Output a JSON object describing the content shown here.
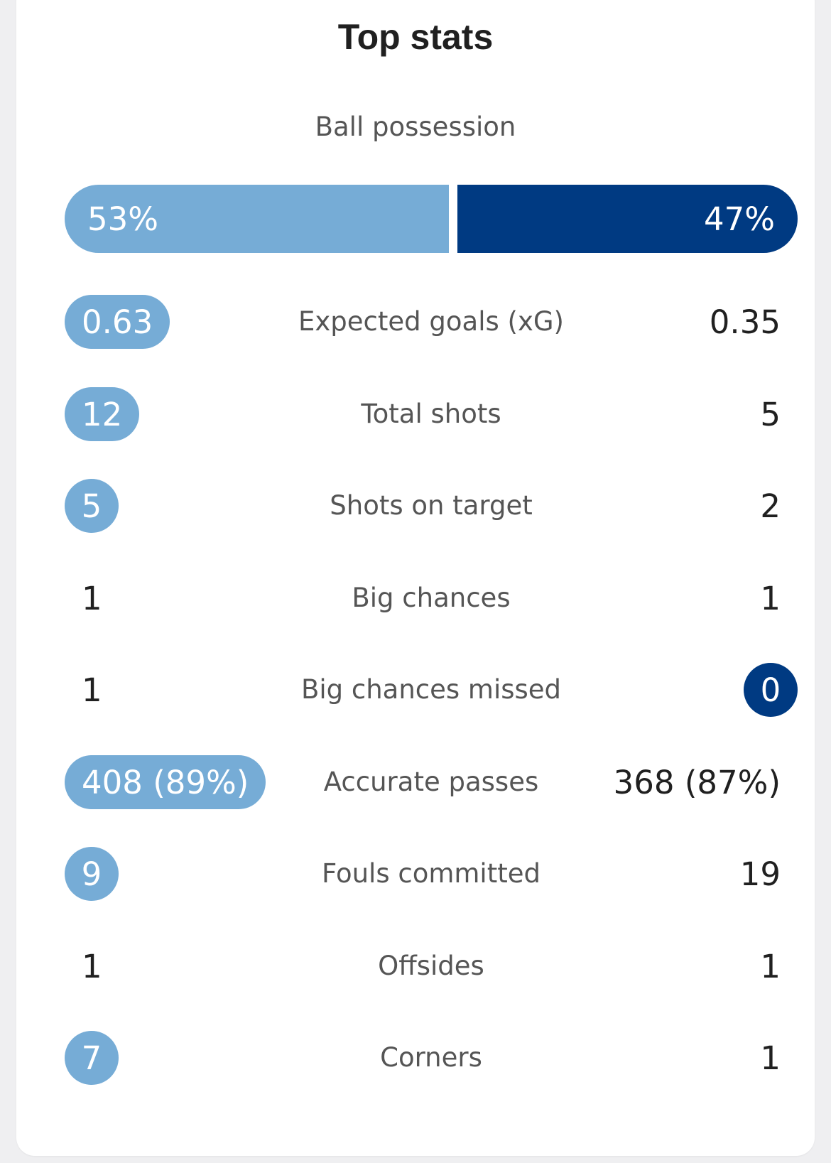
{
  "title": "Top stats",
  "colors": {
    "home": "#76acd6",
    "away": "#003a82"
  },
  "possession": {
    "label": "Ball possession",
    "home": "53%",
    "away": "47%",
    "home_value": 53,
    "away_value": 47
  },
  "stats": [
    {
      "label": "Expected goals (xG)",
      "home": "0.63",
      "away": "0.35",
      "leader": "home"
    },
    {
      "label": "Total shots",
      "home": "12",
      "away": "5",
      "leader": "home"
    },
    {
      "label": "Shots on target",
      "home": "5",
      "away": "2",
      "leader": "home"
    },
    {
      "label": "Big chances",
      "home": "1",
      "away": "1",
      "leader": "none"
    },
    {
      "label": "Big chances missed",
      "home": "1",
      "away": "0",
      "leader": "away"
    },
    {
      "label": "Accurate passes",
      "home": "408 (89%)",
      "away": "368 (87%)",
      "leader": "home"
    },
    {
      "label": "Fouls committed",
      "home": "9",
      "away": "19",
      "leader": "home"
    },
    {
      "label": "Offsides",
      "home": "1",
      "away": "1",
      "leader": "none"
    },
    {
      "label": "Corners",
      "home": "7",
      "away": "1",
      "leader": "home"
    }
  ]
}
